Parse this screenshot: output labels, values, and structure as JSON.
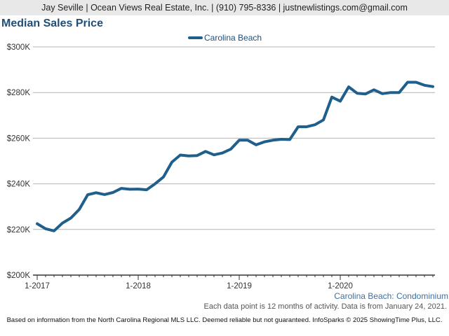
{
  "header": {
    "agent_line": "Jay Seville | Ocean Views Real Estate, Inc. | (910) 795-8336 | justnewlistings.com@gmail.com"
  },
  "footer": {
    "disclaimer": "Based on information from the North Carolina Regional MLS LLC. Deemed reliable but not guaranteed. InfoSparks © 2025 ShowingTime Plus, LLC."
  },
  "colors": {
    "series": "#1f5f8b",
    "title": "#1f4e79",
    "grid": "#b3b3b3",
    "axis": "#333333"
  },
  "chart_data": {
    "type": "line",
    "title": "Median Sales Price",
    "subtitle": "Carolina Beach: Condominium",
    "note": "Each data point is 12 months of activity. Data is from January 24, 2021.",
    "legend_position": "top-center",
    "grid": true,
    "x_tick_labels": [
      "1-2017",
      "1-2018",
      "1-2019",
      "1-2020"
    ],
    "y_tick_labels": [
      "$200K",
      "$220K",
      "$240K",
      "$260K",
      "$280K",
      "$300K"
    ],
    "ylim": [
      200000,
      300000
    ],
    "x": [
      "2017-01",
      "2017-02",
      "2017-03",
      "2017-04",
      "2017-05",
      "2017-06",
      "2017-07",
      "2017-08",
      "2017-09",
      "2017-10",
      "2017-11",
      "2017-12",
      "2018-01",
      "2018-02",
      "2018-03",
      "2018-04",
      "2018-05",
      "2018-06",
      "2018-07",
      "2018-08",
      "2018-09",
      "2018-10",
      "2018-11",
      "2018-12",
      "2019-01",
      "2019-02",
      "2019-03",
      "2019-04",
      "2019-05",
      "2019-06",
      "2019-07",
      "2019-08",
      "2019-09",
      "2019-10",
      "2019-11",
      "2019-12",
      "2020-01",
      "2020-02",
      "2020-03",
      "2020-04",
      "2020-05",
      "2020-06",
      "2020-07",
      "2020-08",
      "2020-09",
      "2020-10",
      "2020-11",
      "2020-12"
    ],
    "series": [
      {
        "name": "Carolina Beach",
        "values": [
          222500,
          220300,
          219400,
          222800,
          225000,
          228800,
          235200,
          236100,
          235300,
          236200,
          238000,
          237600,
          237700,
          237400,
          240000,
          243000,
          249500,
          252600,
          252200,
          252400,
          254200,
          252700,
          253500,
          255200,
          259100,
          259100,
          257100,
          258400,
          259100,
          259500,
          259400,
          265000,
          265000,
          265900,
          268000,
          278000,
          276200,
          282500,
          279700,
          279400,
          281200,
          279500,
          280000,
          280000,
          284500,
          284500,
          283200,
          282600
        ]
      }
    ]
  }
}
